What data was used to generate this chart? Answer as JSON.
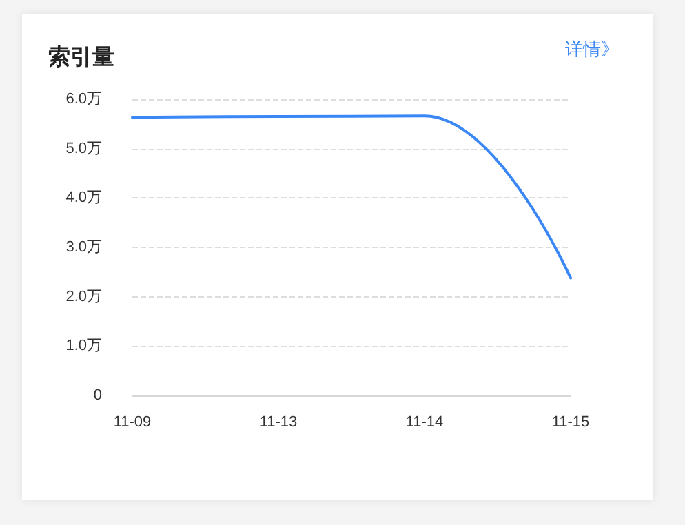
{
  "chart_data": {
    "type": "line",
    "title": "索引量",
    "annotations": [
      "详情》"
    ],
    "categories": [
      "11-09",
      "11-13",
      "11-14",
      "11-15"
    ],
    "series": [
      {
        "color": "#3a87f5",
        "values": [
          5.63,
          5.65,
          5.66,
          2.38
        ]
      }
    ],
    "ylim": [
      0,
      6
    ],
    "yticks": [
      {
        "value": 0,
        "label": "0"
      },
      {
        "value": 1,
        "label": "1.0万"
      },
      {
        "value": 2,
        "label": "2.0万"
      },
      {
        "value": 3,
        "label": "3.0万"
      },
      {
        "value": 4,
        "label": "4.0万"
      },
      {
        "value": 5,
        "label": "5.0万"
      },
      {
        "value": 6,
        "label": "6.0万"
      }
    ],
    "grid": "y",
    "marker": "none",
    "line_style": "solid"
  }
}
